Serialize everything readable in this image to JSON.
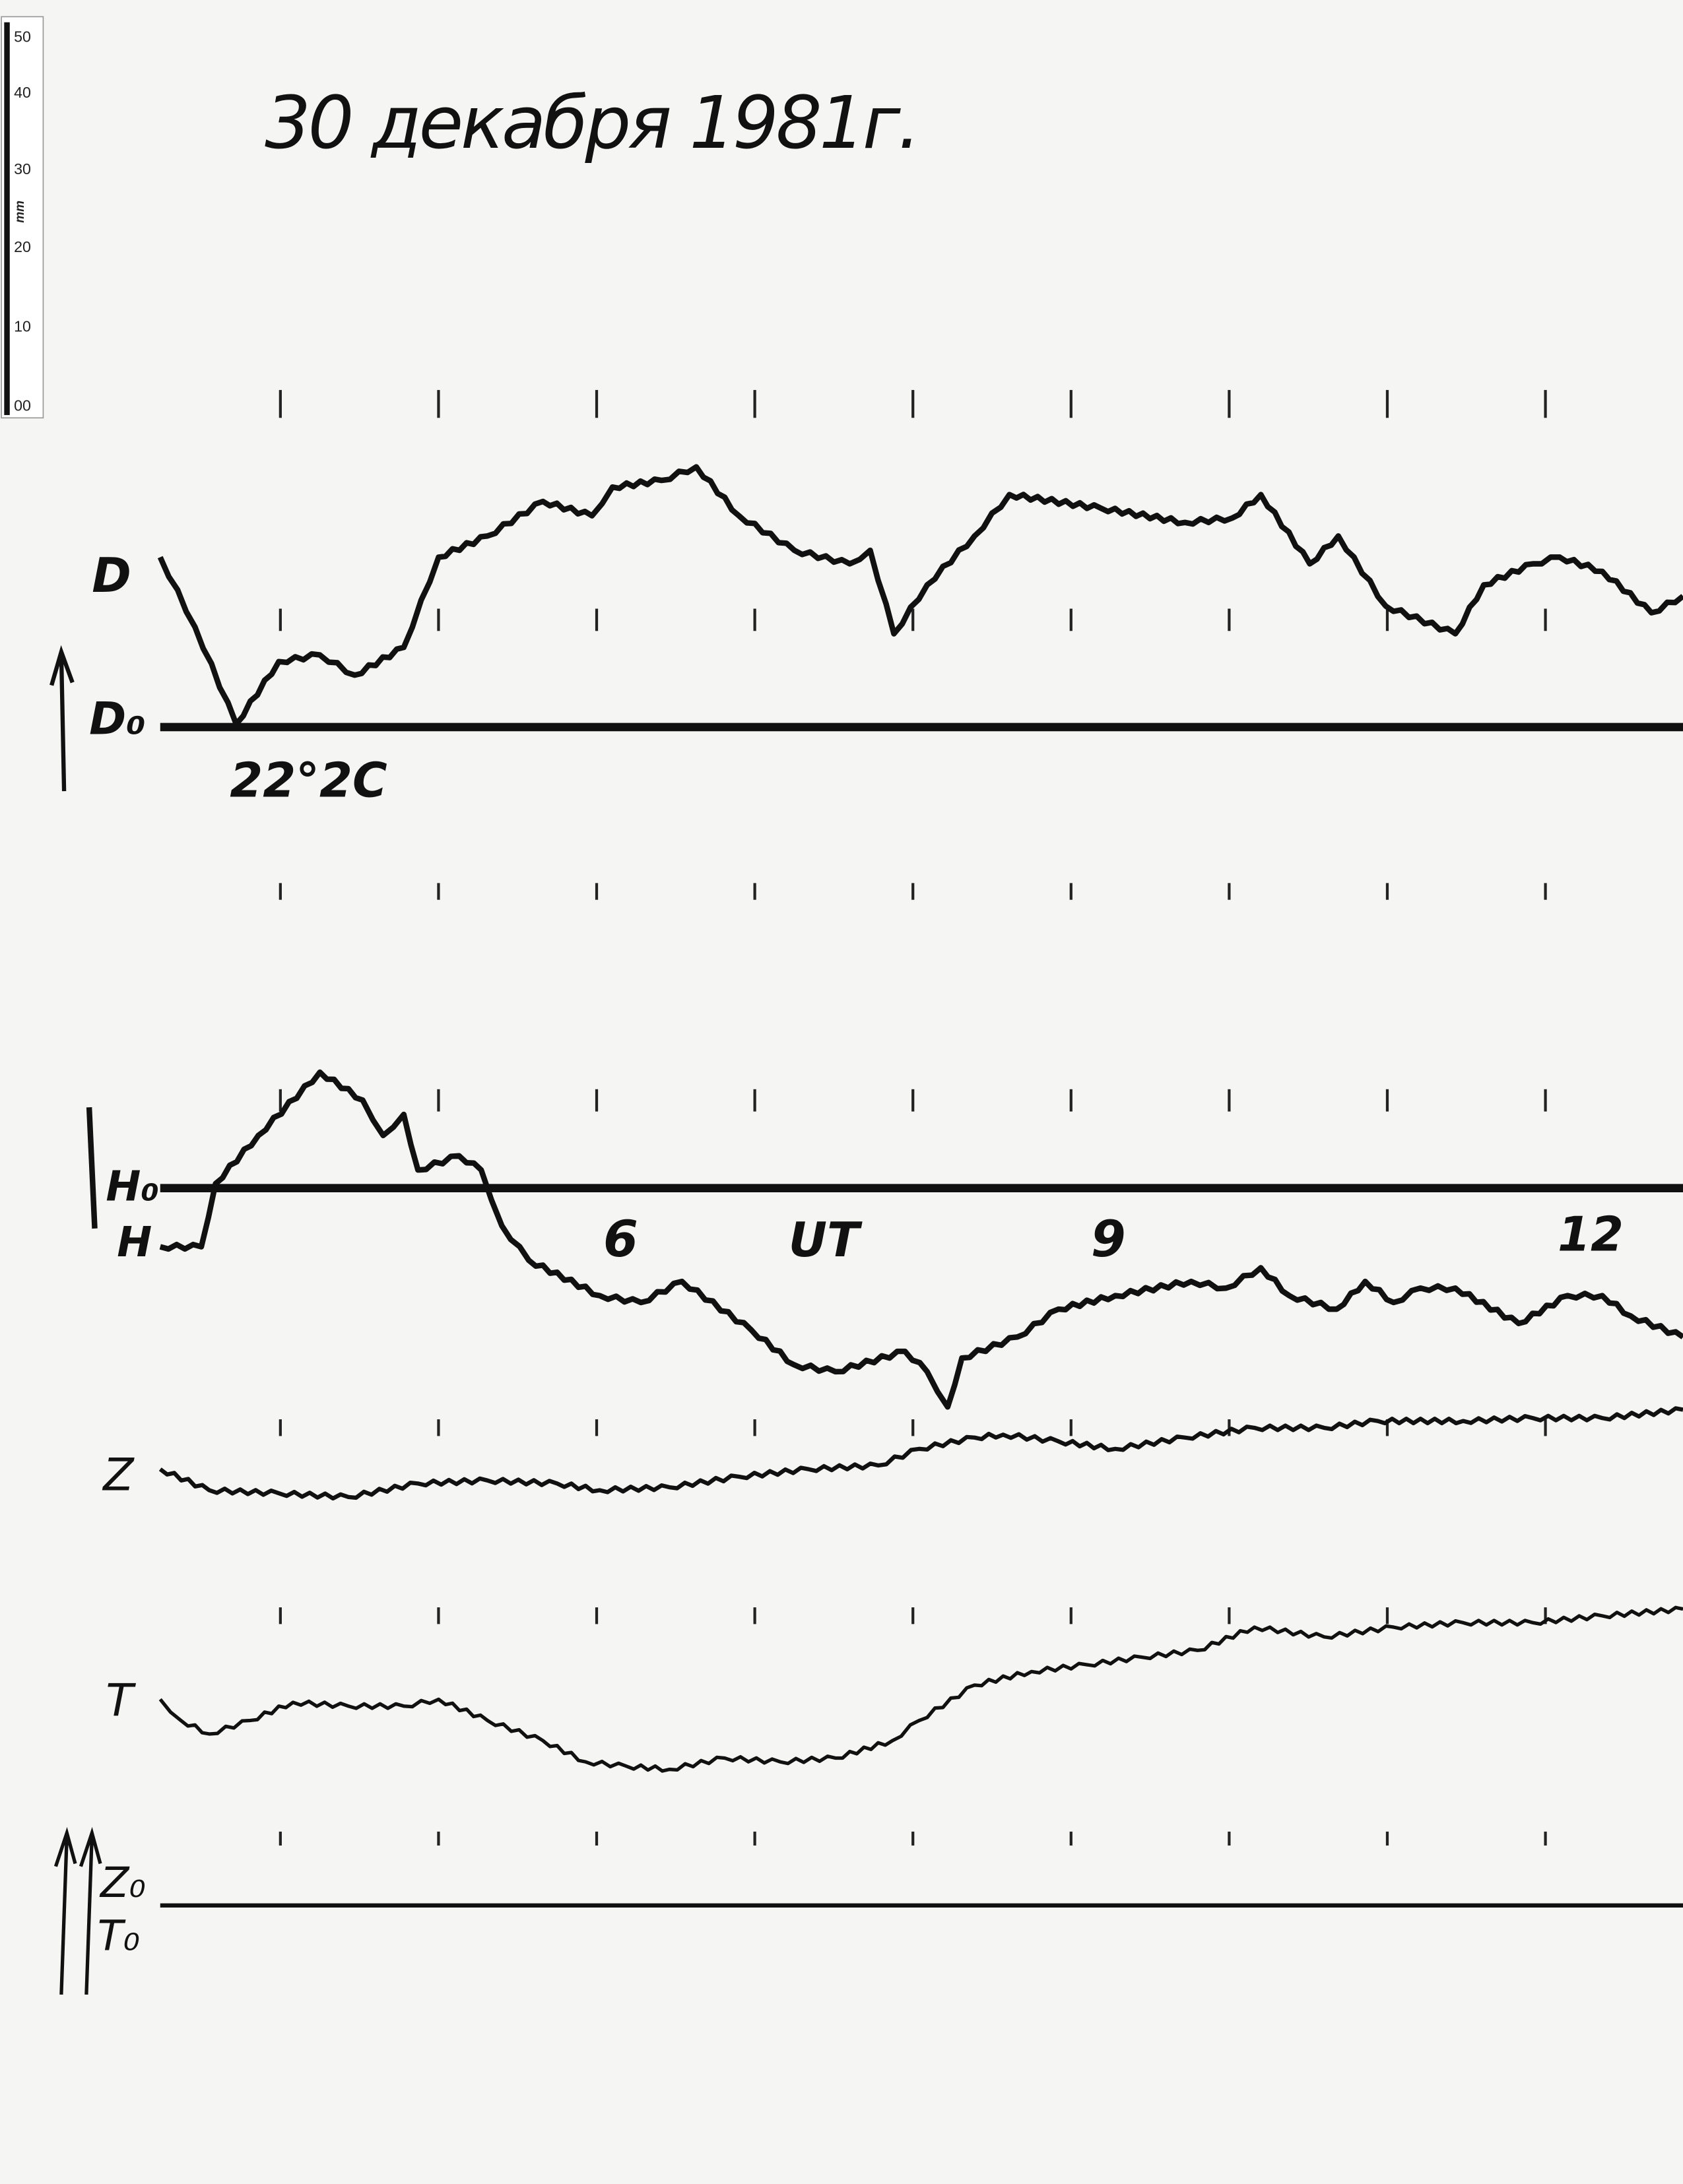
{
  "title": "30 декабря 1981г.",
  "scale_ruler": {
    "unit": "mm",
    "labels": [
      "50",
      "40",
      "30",
      "20",
      "10",
      "00"
    ]
  },
  "labels": {
    "d": "D",
    "d0": "D₀",
    "d0_value": "22°2C",
    "h0": "H₀",
    "h": "H",
    "z": "Z",
    "t": "T",
    "z0": "Z₀",
    "t0": "T₀"
  },
  "colors": {
    "paper": "#f5f5f3",
    "ink": "#111111"
  },
  "chart_data": {
    "type": "line",
    "title": "30 декабря 1981г.",
    "xlabel": "UT",
    "ylabel": "",
    "x_unit": "hours UT",
    "y_unit": "mm deflection from baseline (per scale ruler)",
    "xlim": [
      3.24,
      12.87
    ],
    "x_tick_labels": [
      {
        "value": 6,
        "label": "6"
      },
      {
        "value": 9,
        "label": "9"
      },
      {
        "value": 12,
        "label": "12"
      }
    ],
    "hour_marks": [
      4,
      5,
      6,
      7,
      8,
      9,
      10,
      11,
      12
    ],
    "grid": false,
    "legend": "none",
    "series": [
      {
        "name": "D",
        "baseline": "D₀",
        "x": [
          3.24,
          3.46,
          3.72,
          3.99,
          4.25,
          4.47,
          4.78,
          5.0,
          5.31,
          5.66,
          5.97,
          6.1,
          6.41,
          6.63,
          6.9,
          7.25,
          7.6,
          7.73,
          7.88,
          8.09,
          8.39,
          8.61,
          9.19,
          9.72,
          10.02,
          10.2,
          10.51,
          10.69,
          10.99,
          11.43,
          11.61,
          11.92,
          12.09,
          12.36,
          12.67,
          12.87
        ],
        "y": [
          22.6,
          13.3,
          0.4,
          8.7,
          9.6,
          6.9,
          10.6,
          22.6,
          25.4,
          30.0,
          28.1,
          31.9,
          32.8,
          34.6,
          28.1,
          23.5,
          21.7,
          23.5,
          12.4,
          18.9,
          25.4,
          30.9,
          29.1,
          27.2,
          27.8,
          30.9,
          21.7,
          25.4,
          16.1,
          12.4,
          18.9,
          21.7,
          22.6,
          20.7,
          15.2,
          17.4
        ]
      },
      {
        "name": "H",
        "baseline": "H₀",
        "x": [
          3.24,
          3.5,
          3.59,
          3.86,
          4.25,
          4.52,
          4.65,
          4.78,
          4.87,
          5.13,
          5.27,
          5.4,
          5.57,
          6.02,
          6.28,
          6.54,
          6.98,
          7.25,
          7.51,
          7.95,
          8.09,
          8.22,
          8.31,
          8.66,
          8.92,
          9.28,
          9.76,
          9.98,
          10.2,
          10.38,
          10.68,
          10.86,
          11.04,
          11.21,
          11.43,
          11.83,
          12.14,
          12.36,
          12.54,
          12.87
        ],
        "y": [
          -7.8,
          -7.8,
          0.6,
          7.0,
          15.4,
          11.7,
          7.0,
          9.8,
          2.4,
          4.3,
          2.4,
          -5.0,
          -9.6,
          -14.3,
          -15.2,
          -12.4,
          -18.9,
          -23.5,
          -24.4,
          -21.7,
          -24.4,
          -29.1,
          -22.6,
          -19.8,
          -16.1,
          -14.3,
          -12.4,
          -13.3,
          -10.6,
          -14.3,
          -16.1,
          -12.4,
          -15.2,
          -13.3,
          -13.3,
          -18.0,
          -14.3,
          -14.3,
          -17.0,
          -19.8
        ]
      },
      {
        "name": "Z",
        "baseline": "Z₀",
        "x": [
          3.24,
          3.55,
          3.99,
          4.43,
          4.87,
          5.31,
          5.75,
          6.02,
          6.46,
          6.9,
          7.34,
          7.78,
          8.04,
          8.39,
          8.57,
          8.92,
          9.28,
          9.72,
          10.16,
          10.6,
          10.94,
          11.48,
          11.92,
          12.36,
          12.87
        ],
        "y": [
          58.0,
          55.2,
          54.8,
          54.3,
          56.1,
          56.5,
          56.1,
          55.2,
          55.6,
          57.0,
          58.0,
          58.5,
          60.7,
          62.2,
          62.6,
          61.7,
          60.7,
          62.2,
          63.5,
          63.5,
          64.4,
          64.4,
          64.8,
          64.8,
          65.9
        ]
      },
      {
        "name": "T",
        "baseline": "T₀",
        "x": [
          3.24,
          3.37,
          3.55,
          3.81,
          4.08,
          4.43,
          4.78,
          5.0,
          5.31,
          5.66,
          5.93,
          6.19,
          6.46,
          6.81,
          7.16,
          7.51,
          7.87,
          8.04,
          8.39,
          8.75,
          9.1,
          9.45,
          9.8,
          10.16,
          10.6,
          11.04,
          11.48,
          11.92,
          12.36,
          12.87
        ],
        "y": [
          27.4,
          24.6,
          22.8,
          24.6,
          27.0,
          26.5,
          26.5,
          27.4,
          24.6,
          21.9,
          19.1,
          18.5,
          18.1,
          19.6,
          19.1,
          19.6,
          21.9,
          24.6,
          29.3,
          31.1,
          32.0,
          33.0,
          33.9,
          37.0,
          35.7,
          37.0,
          37.6,
          37.6,
          38.5,
          39.4
        ]
      }
    ]
  }
}
